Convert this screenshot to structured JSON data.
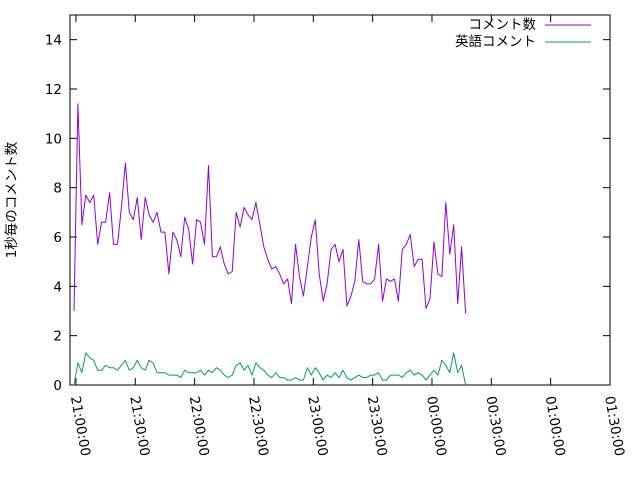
{
  "chart_data": {
    "type": "line",
    "title": "",
    "xlabel": "",
    "ylabel": "1秒毎のコメント数",
    "xlim": [
      "20:57:00",
      "01:30:00"
    ],
    "ylim": [
      0,
      15
    ],
    "grid": false,
    "legend_position": "top-right",
    "x_ticks": [
      "21:00:00",
      "21:30:00",
      "22:00:00",
      "22:30:00",
      "23:00:00",
      "23:30:00",
      "00:00:00",
      "00:30:00",
      "01:00:00",
      "01:30:00"
    ],
    "y_ticks": [
      "0",
      "2",
      "4",
      "6",
      "8",
      "10",
      "12",
      "14"
    ],
    "x_start": "20:59:00",
    "x_step_seconds": 120,
    "series": [
      {
        "name": "コメント数",
        "color": "#9400d3",
        "values": [
          3.0,
          11.4,
          6.5,
          7.7,
          7.4,
          7.7,
          5.7,
          6.6,
          6.6,
          7.8,
          5.7,
          5.7,
          7.2,
          9.0,
          7.0,
          6.7,
          7.6,
          5.9,
          7.6,
          6.9,
          6.6,
          7.0,
          6.2,
          6.2,
          4.5,
          6.2,
          5.9,
          5.2,
          6.8,
          6.3,
          4.9,
          6.7,
          6.6,
          5.7,
          8.9,
          5.2,
          5.2,
          5.6,
          4.9,
          4.5,
          4.6,
          7.0,
          6.4,
          7.2,
          6.9,
          6.7,
          7.4,
          6.5,
          5.6,
          5.1,
          4.7,
          4.8,
          4.5,
          4.1,
          4.3,
          3.3,
          5.7,
          4.4,
          3.6,
          4.8,
          6.0,
          6.7,
          4.5,
          3.4,
          4.1,
          5.5,
          5.7,
          5.0,
          5.5,
          3.2,
          3.6,
          4.2,
          5.9,
          4.2,
          4.1,
          4.1,
          4.3,
          5.7,
          3.4,
          4.3,
          4.2,
          4.3,
          3.4,
          5.5,
          5.7,
          6.1,
          4.8,
          5.1,
          5.1,
          3.1,
          3.5,
          5.8,
          4.5,
          4.4,
          7.4,
          5.3,
          6.5,
          3.3,
          5.6,
          2.9
        ]
      },
      {
        "name": "英語コメント",
        "color": "#009e73",
        "values": [
          0.0,
          0.9,
          0.5,
          1.3,
          1.1,
          1.0,
          0.6,
          0.6,
          0.8,
          0.7,
          0.7,
          0.6,
          0.8,
          1.0,
          0.6,
          0.7,
          1.0,
          0.7,
          0.6,
          1.0,
          0.9,
          0.5,
          0.5,
          0.5,
          0.4,
          0.4,
          0.4,
          0.3,
          0.6,
          0.5,
          0.5,
          0.5,
          0.6,
          0.4,
          0.6,
          0.5,
          0.7,
          0.6,
          0.4,
          0.3,
          0.4,
          0.8,
          0.9,
          0.6,
          0.8,
          0.4,
          0.9,
          0.7,
          0.6,
          0.4,
          0.3,
          0.5,
          0.3,
          0.3,
          0.2,
          0.2,
          0.3,
          0.2,
          0.2,
          0.7,
          0.4,
          0.7,
          0.5,
          0.2,
          0.4,
          0.3,
          0.5,
          0.3,
          0.6,
          0.3,
          0.2,
          0.3,
          0.4,
          0.3,
          0.3,
          0.4,
          0.4,
          0.5,
          0.2,
          0.2,
          0.4,
          0.4,
          0.4,
          0.3,
          0.5,
          0.6,
          0.4,
          0.5,
          0.4,
          0.2,
          0.4,
          0.6,
          0.4,
          1.0,
          0.8,
          0.5,
          1.3,
          0.5,
          0.8,
          0.0
        ]
      }
    ]
  }
}
